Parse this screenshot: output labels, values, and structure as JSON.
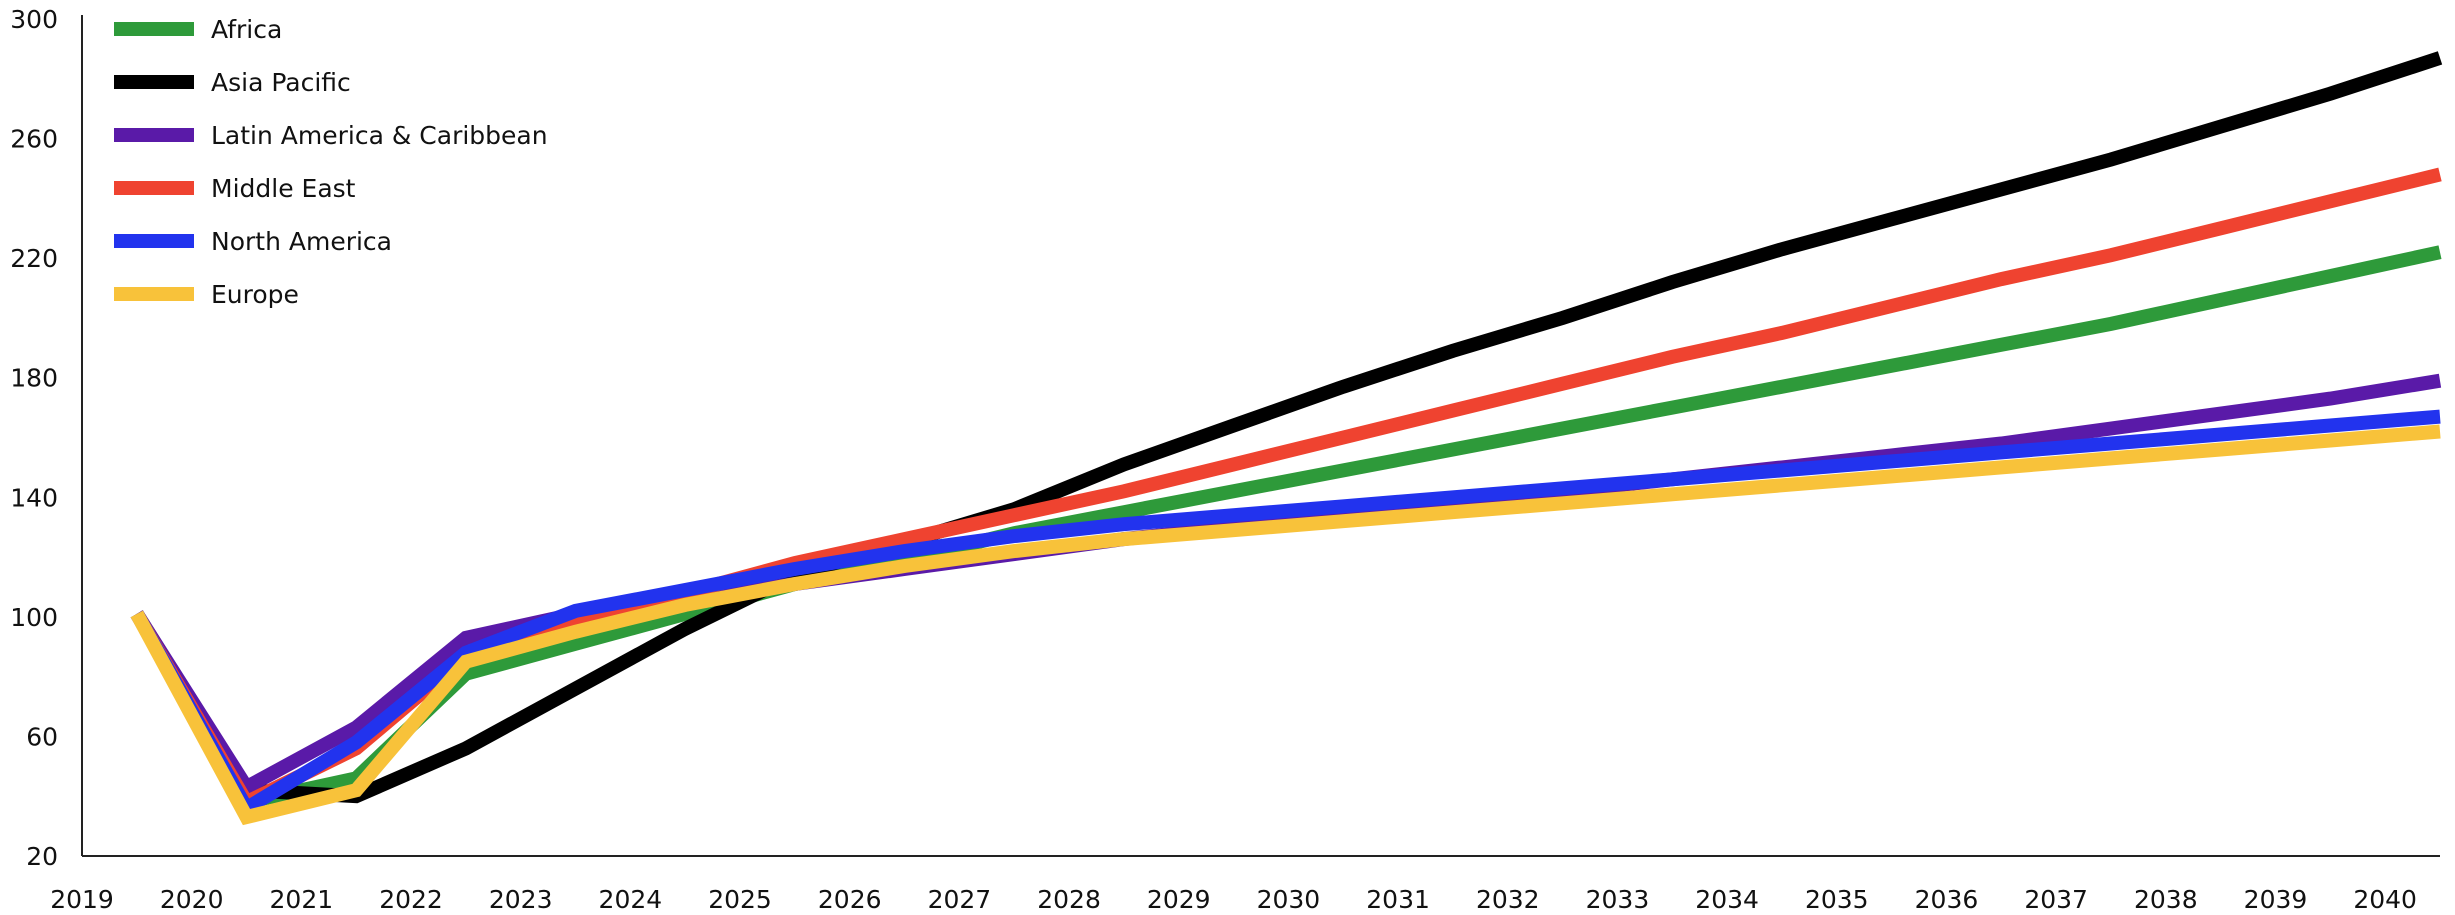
{
  "chart_data": {
    "type": "line",
    "title": "",
    "xlabel": "",
    "ylabel": "",
    "x": [
      2019.5,
      2020.5,
      2021.5,
      2022.5,
      2023.5,
      2024.5,
      2025.5,
      2026.5,
      2027.5,
      2028.5,
      2029.5,
      2030.5,
      2031.5,
      2032.5,
      2033.5,
      2034.5,
      2035.5,
      2036.5,
      2037.5,
      2038.5,
      2039.5,
      2040.5
    ],
    "xlim": [
      2019,
      2040.5
    ],
    "ylim": [
      20,
      300
    ],
    "x_ticks": [
      "2019",
      "2020",
      "2021",
      "2022",
      "2023",
      "2024",
      "2025",
      "2026",
      "2027",
      "2028",
      "2029",
      "2030",
      "2031",
      "2032",
      "2033",
      "2034",
      "2035",
      "2036",
      "2037",
      "2038",
      "2039",
      "2040"
    ],
    "y_ticks": [
      20,
      60,
      100,
      140,
      180,
      220,
      260,
      300
    ],
    "grid": false,
    "legend_position": "top-left",
    "series": [
      {
        "name": "Africa",
        "color": "#2e9a3a",
        "values": [
          101,
          38,
          46,
          81,
          91,
          101,
          111,
          119,
          128,
          135,
          142,
          149,
          156,
          163,
          170,
          177,
          184,
          191,
          198,
          206,
          214,
          222
        ]
      },
      {
        "name": "Asia Pacific",
        "color": "#000000",
        "values": [
          101,
          42,
          40,
          56,
          76,
          96,
          114,
          125,
          136,
          151,
          164,
          177,
          189,
          200,
          212,
          223,
          233,
          243,
          253,
          264,
          275,
          287
        ]
      },
      {
        "name": "Latin America & Caribbean",
        "color": "#5a1aa8",
        "values": [
          101,
          43,
          63,
          93,
          101,
          106,
          111,
          116,
          121,
          126,
          130,
          134,
          138,
          142,
          146,
          150,
          154,
          158,
          163,
          168,
          173,
          179
        ]
      },
      {
        "name": "Middle East",
        "color": "#ef4330",
        "values": [
          101,
          38,
          56,
          87,
          98,
          108,
          118,
          126,
          134,
          142,
          151,
          160,
          169,
          178,
          187,
          195,
          204,
          213,
          221,
          230,
          239,
          248
        ]
      },
      {
        "name": "North America",
        "color": "#2233ee",
        "values": [
          101,
          36,
          58,
          88,
          102,
          109,
          116,
          122,
          127,
          131,
          134,
          137,
          140,
          143,
          146,
          149,
          152,
          155,
          158,
          161,
          164,
          167
        ]
      },
      {
        "name": "Europe",
        "color": "#f8c23a",
        "values": [
          101,
          33,
          42,
          85,
          95,
          104,
          111,
          117,
          122,
          126,
          129,
          132,
          135,
          138,
          141,
          144,
          147,
          150,
          153,
          156,
          159,
          162
        ]
      }
    ]
  }
}
